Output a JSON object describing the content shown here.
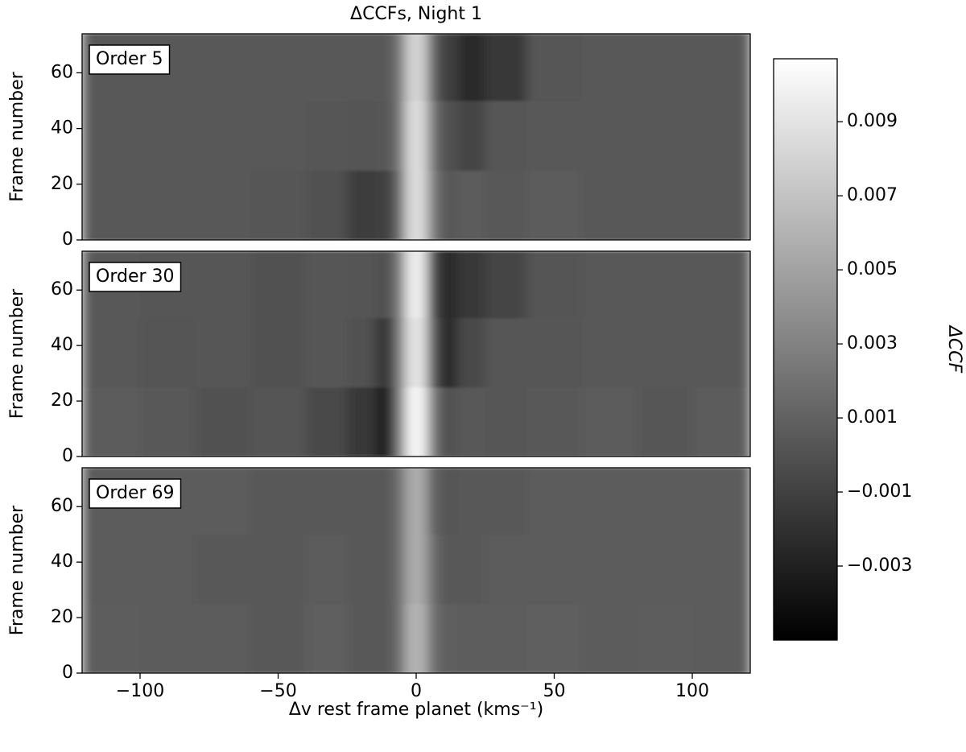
{
  "chart_data": {
    "type": "heatmap",
    "title": "ΔCCFs, Night 1",
    "xlabel": "Δv rest frame planet (kms⁻¹)",
    "ylabel": "Frame number",
    "colormap": "gray",
    "xlim": [
      -121,
      121
    ],
    "xticks": [
      {
        "value": -100,
        "label": "−100"
      },
      {
        "value": -50,
        "label": "−50"
      },
      0,
      50,
      100
    ],
    "ylim": [
      0,
      74
    ],
    "yticks": [
      0,
      20,
      40,
      60
    ],
    "x_edges": [
      -121,
      -100,
      -80,
      -60,
      -40,
      -25,
      -15,
      -8,
      -4,
      4,
      8,
      15,
      25,
      40,
      60,
      80,
      100,
      121
    ],
    "y_edges": [
      0,
      25,
      50,
      74
    ],
    "zlim": [
      -0.005,
      0.0107
    ],
    "colorbar_label": "ΔCCF",
    "colorbar_ticks": [
      0.009,
      0.007,
      0.005,
      0.003,
      0.001,
      {
        "value": -0.001,
        "label": "−0.001"
      },
      {
        "value": -0.003,
        "label": "−0.003"
      }
    ],
    "panels": [
      {
        "label": "Order 5",
        "z": [
          [
            0.0005,
            0.0004,
            0.0005,
            0.0003,
            0.0,
            -0.0012,
            -0.001,
            0.002,
            0.0085,
            0.003,
            0.0005,
            0.0006,
            0.0005,
            0.0006,
            0.0004,
            0.0005,
            0.0005
          ],
          [
            0.0005,
            0.0005,
            0.0004,
            0.0004,
            0.0003,
            0.0002,
            0.0003,
            0.0025,
            0.0085,
            0.0025,
            0.0,
            -0.0008,
            0.0003,
            0.0005,
            0.0005,
            0.0004,
            0.0005
          ],
          [
            0.0005,
            0.0005,
            0.0005,
            0.0004,
            0.0004,
            0.0004,
            0.0004,
            0.0025,
            0.008,
            0.0015,
            -0.001,
            -0.0025,
            -0.0015,
            0.0003,
            0.0005,
            0.0005,
            0.0004
          ]
        ]
      },
      {
        "label": "Order 30",
        "z": [
          [
            0.0006,
            0.0004,
            0.0,
            0.0002,
            -0.0005,
            -0.0015,
            -0.003,
            0.003,
            0.01,
            0.003,
            0.0,
            0.0005,
            0.0003,
            0.0004,
            0.0006,
            0.0003,
            0.0006
          ],
          [
            0.0004,
            0.0002,
            0.0003,
            0.0,
            0.0003,
            0.0,
            -0.0015,
            0.003,
            0.009,
            0.001,
            -0.0025,
            -0.0005,
            0.0003,
            0.0003,
            0.0004,
            0.0004,
            0.0005
          ],
          [
            0.0005,
            0.0003,
            0.0003,
            0.0,
            0.0003,
            0.0002,
            0.0,
            0.003,
            0.0095,
            0.0,
            -0.0025,
            -0.0015,
            -0.0008,
            0.0002,
            0.0004,
            0.0004,
            0.0005
          ]
        ]
      },
      {
        "label": "Order 69",
        "z": [
          [
            0.0007,
            0.0006,
            0.0006,
            0.0005,
            0.0008,
            0.0005,
            0.0004,
            0.002,
            0.006,
            0.002,
            0.0008,
            0.0007,
            0.0007,
            0.0008,
            0.0006,
            0.0007,
            0.0006
          ],
          [
            0.0006,
            0.0006,
            0.0005,
            0.0005,
            0.0006,
            0.0005,
            0.0005,
            0.002,
            0.0055,
            0.0018,
            0.0005,
            0.0005,
            0.0006,
            0.0006,
            0.0006,
            0.0006,
            0.0006
          ],
          [
            0.0006,
            0.0006,
            0.0006,
            0.0005,
            0.0005,
            0.0005,
            0.0005,
            0.002,
            0.0055,
            0.0012,
            0.0003,
            0.0004,
            0.0005,
            0.0006,
            0.0006,
            0.0006,
            0.0006
          ]
        ]
      }
    ]
  }
}
